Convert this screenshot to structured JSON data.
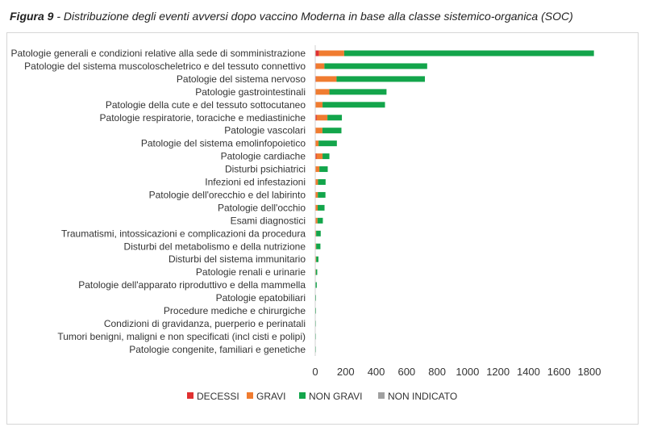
{
  "caption": {
    "label": "Figura 9",
    "text": " - Distribuzione degli eventi avversi dopo vaccino Moderna in base alla classe sistemico-organica (SOC)"
  },
  "chart_data": {
    "type": "bar",
    "orientation": "horizontal",
    "stacked": true,
    "categories": [
      "Patologie generali e condizioni relative alla sede di somministrazione",
      "Patologie del sistema muscoloscheletrico e del tessuto connettivo",
      "Patologie del sistema nervoso",
      "Patologie gastrointestinali",
      "Patologie della cute e del tessuto sottocutaneo",
      "Patologie respiratorie, toraciche e mediastiniche",
      "Patologie vascolari",
      "Patologie del sistema emolinfopoietico",
      "Patologie cardiache",
      "Disturbi psichiatrici",
      "Infezioni ed infestazioni",
      "Patologie dell'orecchio e del labirinto",
      "Patologie dell'occhio",
      "Esami diagnostici",
      "Traumatismi, intossicazioni e complicazioni da procedura",
      "Disturbi del metabolismo e della nutrizione",
      "Disturbi del sistema immunitario",
      "Patologie renali e urinarie",
      "Patologie dell'apparato riproduttivo e della mammella",
      "Patologie epatobiliari",
      "Procedure mediche e chirurgiche",
      "Condizioni di gravidanza, puerperio e perinatali",
      "Tumori benigni, maligni e non specificati (incl cisti e polipi)",
      "Patologie congenite, familiari e genetiche"
    ],
    "series": [
      {
        "name": "DECESSI",
        "color": "#e03030",
        "values": [
          25,
          5,
          5,
          3,
          3,
          10,
          2,
          2,
          8,
          2,
          3,
          2,
          1,
          3,
          1,
          1,
          1,
          1,
          0,
          0,
          0,
          0,
          0,
          0
        ]
      },
      {
        "name": "GRAVI",
        "color": "#f07c30",
        "values": [
          165,
          55,
          135,
          90,
          45,
          70,
          45,
          20,
          40,
          25,
          15,
          15,
          15,
          12,
          5,
          5,
          5,
          3,
          2,
          1,
          1,
          0,
          0,
          0
        ]
      },
      {
        "name": "NON GRAVI",
        "color": "#13a54b",
        "values": [
          1640,
          675,
          580,
          375,
          410,
          95,
          125,
          120,
          45,
          55,
          50,
          50,
          45,
          35,
          30,
          28,
          15,
          9,
          8,
          3,
          1,
          1,
          1,
          1
        ]
      },
      {
        "name": "NON INDICATO",
        "color": "#a0a0a0",
        "values": [
          0,
          0,
          0,
          0,
          0,
          0,
          0,
          0,
          0,
          0,
          0,
          0,
          0,
          0,
          0,
          0,
          0,
          0,
          0,
          0,
          0,
          0,
          0,
          0
        ]
      }
    ],
    "xlim": [
      0,
      1800
    ],
    "xticks": [
      0,
      200,
      400,
      600,
      800,
      1000,
      1200,
      1400,
      1600,
      1800
    ],
    "grid": false,
    "legend_position": "bottom"
  }
}
